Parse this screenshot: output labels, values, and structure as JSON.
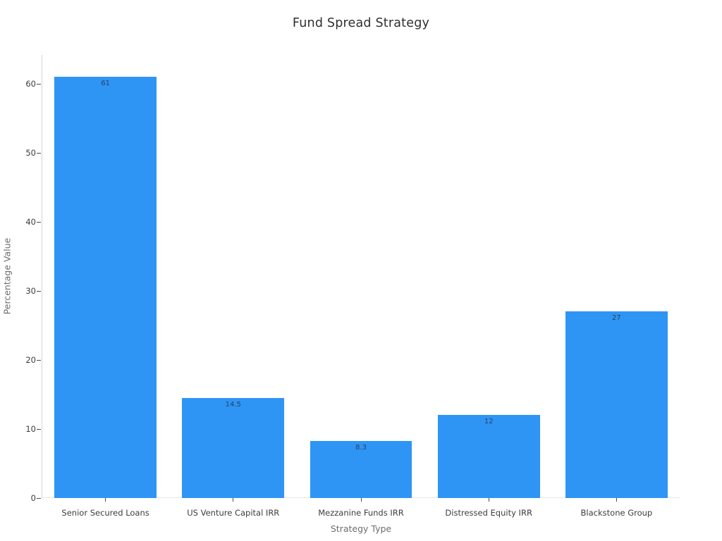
{
  "chart_data": {
    "type": "bar",
    "title": "Fund Spread Strategy",
    "xlabel": "Strategy Type",
    "ylabel": "Percentage Value",
    "categories": [
      "Senior Secured Loans",
      "US Venture Capital IRR",
      "Mezzanine Funds IRR",
      "Distressed Equity IRR",
      "Blackstone Group"
    ],
    "values": [
      61,
      14.5,
      8.3,
      12,
      27
    ],
    "value_labels": [
      "61",
      "14.5",
      "8.3",
      "12",
      "27"
    ],
    "yticks": [
      0,
      10,
      20,
      30,
      40,
      50,
      60
    ],
    "ylim": [
      0,
      64.2
    ],
    "grid": false,
    "legend": "none",
    "bar_gap_fraction": 0.2,
    "colors": {
      "bar": "#2E95F5",
      "value_label": "#2a3f5f",
      "tick_label": "#3d3d3d",
      "axis_title": "#6e6e6e",
      "chart_title": "#2f2f2f",
      "y_axis_line": "#d4d4d4",
      "x_baseline": "#e6e6e6",
      "tick_mark": "#4a4a4a"
    }
  }
}
